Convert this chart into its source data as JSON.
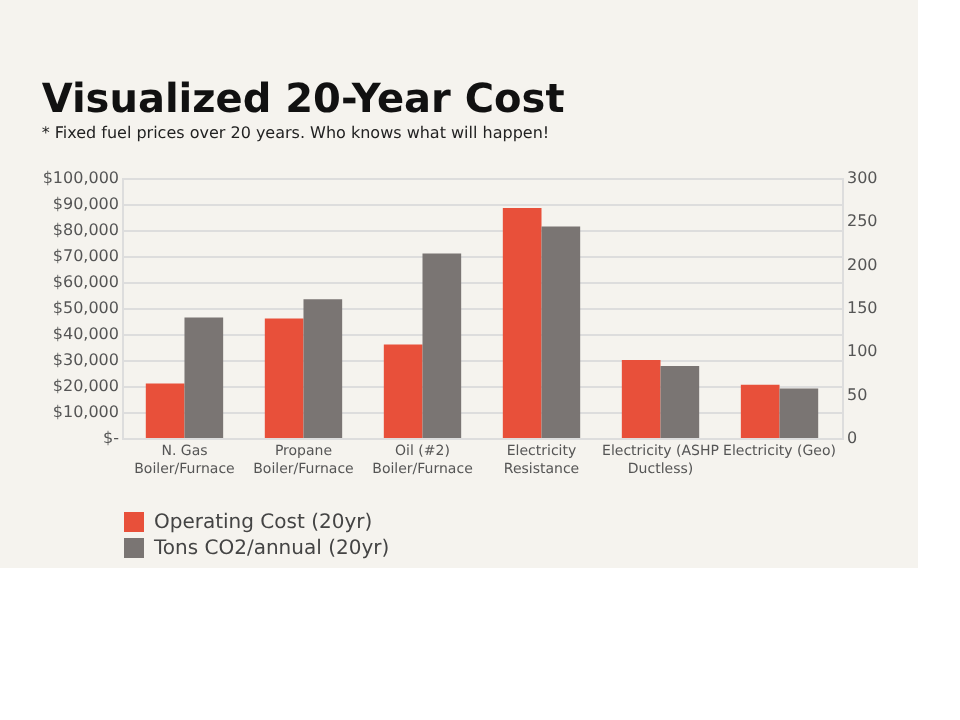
{
  "chart_data": {
    "type": "bar",
    "title": "Visualized 20-Year Cost",
    "categories": [
      "N. Gas\nBoiler/Furnace",
      "Propane\nBoiler/Furnace",
      "Oil (#2)\nBoiler/Furnace",
      "Electricity\nResistance",
      "Electricity (ASHP\nDuctless)",
      "Electricity (Geo)"
    ],
    "series": [
      {
        "name": "Operating Cost (20yr)",
        "color": "#e8503a",
        "values": [
          21000,
          46000,
          36000,
          88500,
          30000,
          20500
        ]
      },
      {
        "name": "Tons CO2/annual (20yr)",
        "color": "#7a7573",
        "axis": "y2",
        "values": [
          139,
          160,
          213,
          244,
          83,
          57
        ]
      }
    ],
    "ylim": [
      0,
      100000
    ],
    "yticks": [
      {
        "value": 0,
        "label": "$-"
      },
      {
        "value": 10000,
        "label": "$10,000"
      },
      {
        "value": 20000,
        "label": "$20,000"
      },
      {
        "value": 30000,
        "label": "$30,000"
      },
      {
        "value": 40000,
        "label": "$40,000"
      },
      {
        "value": 50000,
        "label": "$50,000"
      },
      {
        "value": 60000,
        "label": "$60,000"
      },
      {
        "value": 70000,
        "label": "$70,000"
      },
      {
        "value": 80000,
        "label": "$80,000"
      },
      {
        "value": 90000,
        "label": "$90,000"
      },
      {
        "value": 100000,
        "label": "$100,000"
      }
    ],
    "y2lim": [
      0,
      300
    ],
    "y2ticks": [
      0,
      50,
      100,
      150,
      200,
      250,
      300
    ],
    "grid": "y",
    "legend": "bottom",
    "annotations": [
      "* Fixed fuel prices over 20 years.  Who knows what will happen!"
    ]
  }
}
